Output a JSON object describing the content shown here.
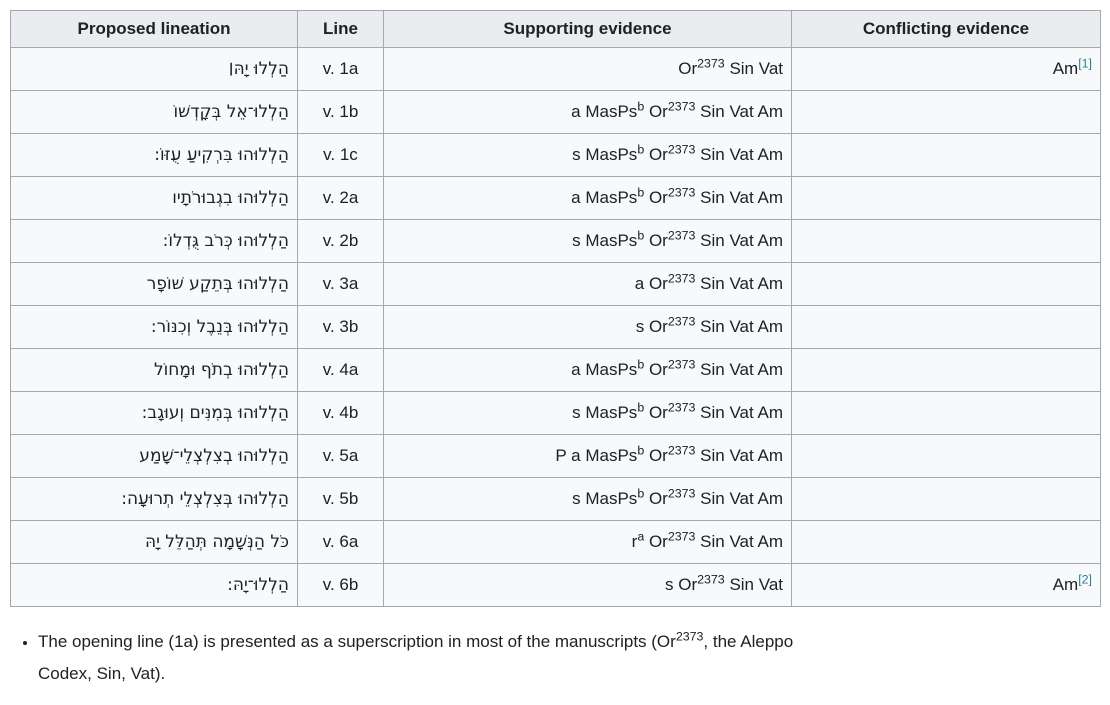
{
  "colors": {
    "header_bg": "#eaecf0",
    "row_bg": "#f8f9fa",
    "border_inner": "#a2a9b1",
    "border_outer": "#72777d",
    "ref_link": "#2b7e99",
    "text": "#202122"
  },
  "table": {
    "headers": [
      {
        "label": "Proposed lineation"
      },
      {
        "label": "Line"
      },
      {
        "label": "Supporting evidence"
      },
      {
        "label": "Conflicting evidence"
      }
    ],
    "rows": [
      {
        "lineation": "הַלְלוּ יָהּ׀",
        "line": "v. 1a",
        "supporting": "Or^{2373} Sin Vat",
        "conflicting": "Am^{[1]}"
      },
      {
        "lineation": "הַלְלוּ־אֵל בְּקָדְשׁוֹ",
        "line": "v. 1b",
        "supporting": "a MasPs^{b} Or^{2373} Sin Vat Am",
        "conflicting": ""
      },
      {
        "lineation": "הַלְלוּהוּ בִּרְקִיעַ עֻזּוֹ:",
        "line": "v. 1c",
        "supporting": "s MasPs^{b} Or^{2373} Sin Vat Am",
        "conflicting": ""
      },
      {
        "lineation": "הַלְלוּהוּ בִגְבוּרֹתָיו",
        "line": "v. 2a",
        "supporting": "a MasPs^{b} Or^{2373} Sin Vat Am",
        "conflicting": ""
      },
      {
        "lineation": "הַלְלוּהוּ כְּרֹב גֻּדְלוֹ:",
        "line": "v. 2b",
        "supporting": "s MasPs^{b} Or^{2373} Sin Vat Am",
        "conflicting": ""
      },
      {
        "lineation": "הַלְלוּהוּ בְּתֵקַע שׁוֹפָר",
        "line": "v. 3a",
        "supporting": "a Or^{2373} Sin Vat Am",
        "conflicting": ""
      },
      {
        "lineation": "הַלְלוּהוּ בְּנֵבֶל וְכִנּוֹר:",
        "line": "v. 3b",
        "supporting": "s Or^{2373} Sin Vat Am",
        "conflicting": ""
      },
      {
        "lineation": "הַלְלוּהוּ בְתֹף וּמָחוֹל",
        "line": "v. 4a",
        "supporting": "a MasPs^{b} Or^{2373} Sin Vat Am",
        "conflicting": ""
      },
      {
        "lineation": "הַלְלוּהוּ בְּמִנִּים וְעוּגָב:",
        "line": "v. 4b",
        "supporting": "s MasPs^{b} Or^{2373} Sin Vat Am",
        "conflicting": ""
      },
      {
        "lineation": "הַלְלוּהוּ בְצִלְצְלֵי־שָׁמַע",
        "line": "v. 5a",
        "supporting": "P a MasPs^{b} Or^{2373} Sin Vat Am",
        "conflicting": ""
      },
      {
        "lineation": "הַלְלוּהוּ בְּצִלְצְלֵי תְרוּעָה:",
        "line": "v. 5b",
        "supporting": "s MasPs^{b} Or^{2373} Sin Vat Am",
        "conflicting": ""
      },
      {
        "lineation": "כֹּל הַנְּשָׁמָה תְּהַלֵּל יָהּ",
        "line": "v. 6a",
        "supporting": "r^{a} Or^{2373} Sin Vat Am",
        "conflicting": ""
      },
      {
        "lineation": "הַלְלוּ־יָהּ:",
        "line": "v. 6b",
        "supporting": "s Or^{2373} Sin Vat",
        "conflicting": "Am^{[2]}"
      }
    ]
  },
  "notes": [
    {
      "text": "The opening line (1a) is presented as a superscription in most of the manuscripts (Or^{2373}, the Aleppo\nCodex, Sin, Vat)."
    }
  ]
}
